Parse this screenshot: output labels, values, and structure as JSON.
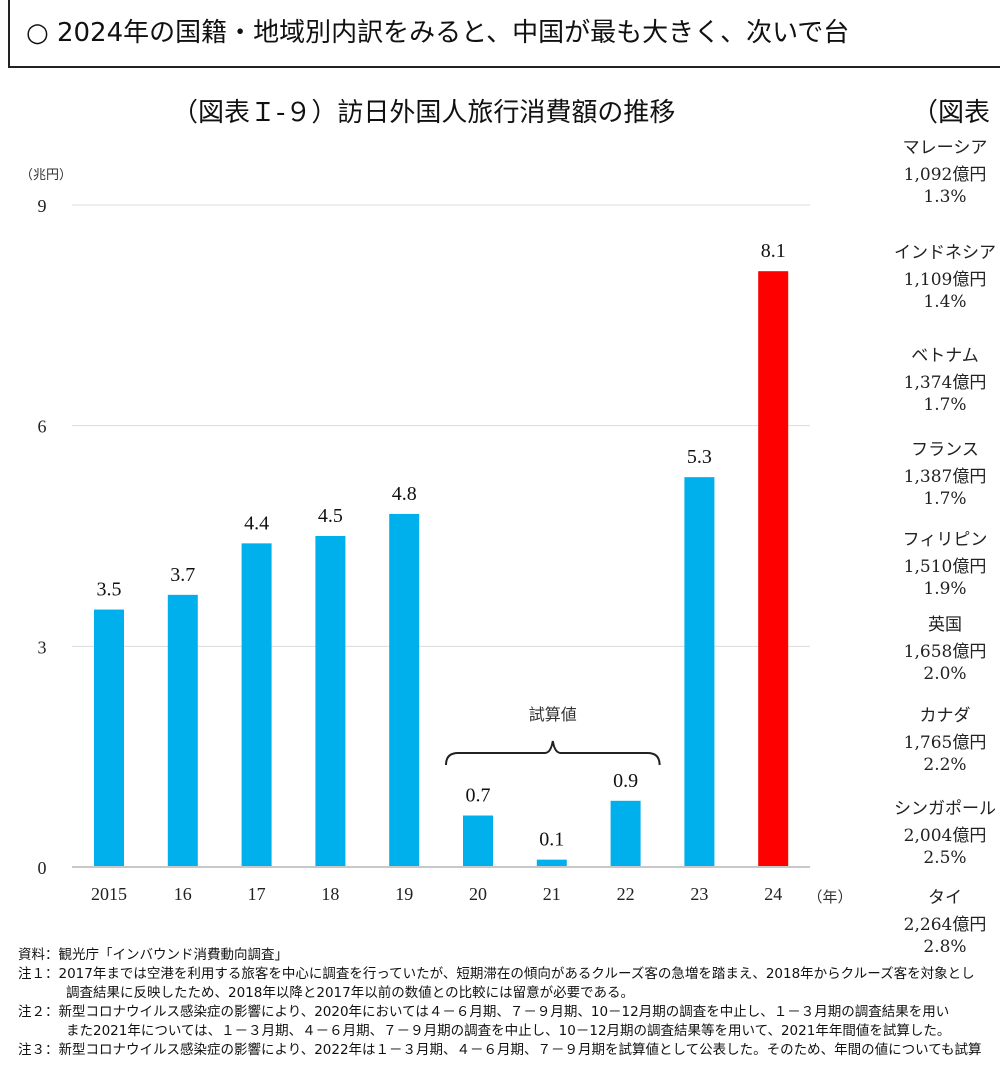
{
  "summary_box": {
    "line": "○ 2024年の国籍・地域別内訳をみると、中国が最も大きく、次いで台"
  },
  "right_panel": {
    "title": "（図表",
    "items": [
      {
        "name": "マレーシア",
        "amount": "1,092億円",
        "share": "1.3%"
      },
      {
        "name": "インドネシア",
        "amount": "1,109億円",
        "share": "1.4%"
      },
      {
        "name": "ベトナム",
        "amount": "1,374億円",
        "share": "1.7%"
      },
      {
        "name": "フランス",
        "amount": "1,387億円",
        "share": "1.7%"
      },
      {
        "name": "フィリピン",
        "amount": "1,510億円",
        "share": "1.9%"
      },
      {
        "name": "英国",
        "amount": "1,658億円",
        "share": "2.0%"
      },
      {
        "name": "カナダ",
        "amount": "1,765億円",
        "share": "2.2%"
      },
      {
        "name": "シンガポール",
        "amount": "2,004億円",
        "share": "2.5%"
      },
      {
        "name": "タイ",
        "amount": "2,264億円",
        "share": "2.8%"
      }
    ]
  },
  "chart_data": {
    "type": "bar",
    "title": "（図表Ｉ-９）訪日外国人旅行消費額の推移",
    "ylabel": "（兆円）",
    "xlabel": "（年）",
    "ylim": [
      0,
      9
    ],
    "yticks": [
      0,
      3,
      6,
      9
    ],
    "grid": true,
    "categories": [
      "2015",
      "16",
      "17",
      "18",
      "19",
      "20",
      "21",
      "22",
      "23",
      "24"
    ],
    "values": [
      3.5,
      3.7,
      4.4,
      4.5,
      4.8,
      0.7,
      0.1,
      0.9,
      5.3,
      8.1
    ],
    "data_labels": [
      "3.5",
      "3.7",
      "4.4",
      "4.5",
      "4.8",
      "0.7",
      "0.1",
      "0.9",
      "5.3",
      "8.1"
    ],
    "colors": {
      "default": "#00b0ec",
      "highlight": "#ff0000"
    },
    "highlight_index": 9,
    "annotation": {
      "text": "試算値",
      "range": [
        "20",
        "22"
      ]
    }
  },
  "notes": [
    "資料：観光庁「インバウンド消費動向調査」",
    "注１：2017年までは空港を利用する旅客を中心に調査を行っていたが、短期滞在の傾向があるクルーズ客の急増を踏まえ、2018年からクルーズ客を対象とし",
    "調査結果に反映したため、2018年以降と2017年以前の数値との比較には留意が必要である。",
    "注２：新型コロナウイルス感染症の影響により、2020年においては４－６月期、７－９月期、10－12月期の調査を中止し、１－３月期の調査結果を用い",
    "また2021年については、１－３月期、４－６月期、７－９月期の調査を中止し、10－12月期の調査結果等を用いて、2021年年間値を試算した。",
    "注３：新型コロナウイルス感染症の影響により、2022年は１－３月期、４－６月期、７－９月期を試算値として公表した。そのため、年間の値についても試算"
  ]
}
